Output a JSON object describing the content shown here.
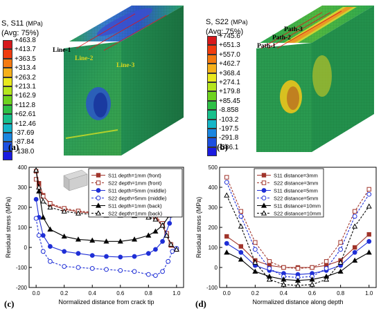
{
  "panel_a": {
    "label": "(a)",
    "legend_title_1": "S, S11",
    "legend_unit": "(MPa)",
    "legend_title_2": "(Avg: 75%)",
    "ticks": [
      "+463.8",
      "+413.7",
      "+363.5",
      "+313.4",
      "+263.2",
      "+213.1",
      "+162.9",
      "+112.8",
      "+62.61",
      "+12.46",
      "-37.69",
      "-87.84",
      "-138.0"
    ],
    "lines": [
      "Line-1",
      "Line-2",
      "Line-3"
    ]
  },
  "panel_b": {
    "label": "(b)",
    "legend_title_1": "S, S22",
    "legend_unit": "(MPa)",
    "legend_title_2": "(Avg: 75%)",
    "ticks": [
      "+745.6",
      "+651.3",
      "+557.0",
      "+462.7",
      "+368.4",
      "+274.1",
      "+179.8",
      "+85.45",
      "-8.858",
      "-103.2",
      "-197.5",
      "-291.8",
      "-386.1"
    ],
    "paths": [
      "Path-3",
      "Path-2",
      "Path-1"
    ]
  },
  "colorbar_colors": [
    "#d7191c",
    "#f03c0f",
    "#f47a10",
    "#f5b01a",
    "#e8e81e",
    "#b5e61d",
    "#6ed31e",
    "#2ec046",
    "#18c08c",
    "#15b6c8",
    "#1b86e0",
    "#1c4fe0",
    "#1b1be0"
  ],
  "panel_c_label": "(c)",
  "panel_d_label": "(d)",
  "chart_data": [
    {
      "type": "line",
      "xlabel": "Normalized distance from crack tip",
      "ylabel": "Residual stress (MPa)",
      "xlim": [
        -0.05,
        1.05
      ],
      "ylim": [
        -200,
        400
      ],
      "xticks": [
        "0.0",
        "0.2",
        "0.4",
        "0.6",
        "0.8",
        "1.0"
      ],
      "yticks": [
        "-200",
        "-100",
        "0",
        "100",
        "200",
        "300",
        "400"
      ],
      "legend": "top-right",
      "series": [
        {
          "name": "S11 depth=1mm (front)",
          "color": "#a0342a",
          "dash": false,
          "marker": "square-filled",
          "x": [
            0.0,
            0.02,
            0.05,
            0.1,
            0.2,
            0.3,
            0.4,
            0.5,
            0.6,
            0.7,
            0.8,
            0.85,
            0.9,
            0.93,
            0.96,
            1.0
          ],
          "y": [
            380,
            320,
            260,
            215,
            190,
            178,
            170,
            165,
            163,
            162,
            160,
            150,
            110,
            60,
            10,
            -10
          ]
        },
        {
          "name": "S22 depth=1mm (front)",
          "color": "#a0342a",
          "dash": true,
          "marker": "square-open",
          "x": [
            0.0,
            0.02,
            0.05,
            0.1,
            0.2,
            0.3,
            0.4,
            0.5,
            0.6,
            0.7,
            0.8,
            0.85,
            0.9,
            0.93,
            0.96,
            1.0
          ],
          "y": [
            340,
            300,
            255,
            220,
            195,
            182,
            175,
            170,
            167,
            165,
            162,
            155,
            120,
            70,
            15,
            -10
          ]
        },
        {
          "name": "S11 depth=5mm (middle)",
          "color": "#1f2fd6",
          "dash": false,
          "marker": "circle-filled",
          "x": [
            0.0,
            0.02,
            0.05,
            0.1,
            0.2,
            0.3,
            0.4,
            0.5,
            0.6,
            0.7,
            0.8,
            0.85,
            0.9,
            0.95,
            1.0
          ],
          "y": [
            240,
            150,
            60,
            5,
            -20,
            -30,
            -40,
            -45,
            -48,
            -45,
            -30,
            -10,
            30,
            120,
            285
          ]
        },
        {
          "name": "S22 depth=5mm (middle)",
          "color": "#1f2fd6",
          "dash": true,
          "marker": "circle-open",
          "x": [
            0.0,
            0.02,
            0.05,
            0.1,
            0.2,
            0.3,
            0.4,
            0.5,
            0.6,
            0.7,
            0.8,
            0.85,
            0.9,
            0.94,
            0.97,
            1.0
          ],
          "y": [
            145,
            60,
            -20,
            -70,
            -95,
            -100,
            -105,
            -110,
            -115,
            -120,
            -135,
            -140,
            -120,
            -70,
            -20,
            -5
          ]
        },
        {
          "name": "S11 depth=1mm (back)",
          "color": "#000000",
          "dash": false,
          "marker": "triangle-filled",
          "x": [
            0.0,
            0.02,
            0.05,
            0.1,
            0.2,
            0.3,
            0.4,
            0.5,
            0.6,
            0.7,
            0.8,
            0.85,
            0.9,
            0.95,
            1.0
          ],
          "y": [
            385,
            280,
            150,
            90,
            55,
            40,
            35,
            30,
            30,
            40,
            60,
            80,
            110,
            160,
            235
          ]
        },
        {
          "name": "S22 depth=1mm (back)",
          "color": "#000000",
          "dash": true,
          "marker": "triangle-open",
          "x": [
            0.0,
            0.02,
            0.05,
            0.1,
            0.2,
            0.3,
            0.4,
            0.5,
            0.6,
            0.7,
            0.8,
            0.85,
            0.9,
            0.93,
            0.96,
            1.0
          ],
          "y": [
            385,
            300,
            230,
            200,
            180,
            170,
            165,
            160,
            160,
            158,
            150,
            140,
            110,
            60,
            15,
            -10
          ]
        }
      ]
    },
    {
      "type": "line",
      "xlabel": "Normalized distance along depth",
      "ylabel": "Residual stress (MPa)",
      "xlim": [
        -0.05,
        1.05
      ],
      "ylim": [
        -100,
        500
      ],
      "xticks": [
        "0.0",
        "0.2",
        "0.4",
        "0.6",
        "0.8",
        "1.0"
      ],
      "yticks": [
        "-100",
        "0",
        "100",
        "200",
        "300",
        "400",
        "500"
      ],
      "legend": "top-center",
      "x": [
        0.0,
        0.1,
        0.2,
        0.3,
        0.4,
        0.5,
        0.6,
        0.7,
        0.8,
        0.9,
        1.0
      ],
      "series": [
        {
          "name": "S11 distance=3mm",
          "color": "#a0342a",
          "dash": false,
          "marker": "square-filled",
          "values": [
            155,
            105,
            35,
            10,
            0,
            0,
            0,
            10,
            35,
            100,
            165
          ]
        },
        {
          "name": "S22 distance=3mm",
          "color": "#a0342a",
          "dash": true,
          "marker": "square-open",
          "values": [
            450,
            280,
            125,
            30,
            0,
            -5,
            0,
            30,
            125,
            280,
            390
          ]
        },
        {
          "name": "S11 distance=5mm",
          "color": "#1f2fd6",
          "dash": false,
          "marker": "circle-filled",
          "values": [
            120,
            75,
            10,
            -15,
            -30,
            -35,
            -30,
            -15,
            10,
            75,
            130
          ]
        },
        {
          "name": "S22 distance=5mm",
          "color": "#1f2fd6",
          "dash": true,
          "marker": "circle-open",
          "values": [
            425,
            255,
            90,
            -5,
            -45,
            -50,
            -45,
            -5,
            90,
            255,
            365
          ]
        },
        {
          "name": "S11 distance=10mm",
          "color": "#000000",
          "dash": false,
          "marker": "triangle-filled",
          "values": [
            75,
            40,
            -20,
            -45,
            -60,
            -65,
            -60,
            -45,
            -20,
            35,
            75
          ]
        },
        {
          "name": "S22 distance=10mm",
          "color": "#000000",
          "dash": true,
          "marker": "triangle-open",
          "values": [
            360,
            205,
            25,
            -60,
            -85,
            -90,
            -85,
            -60,
            25,
            205,
            305
          ]
        }
      ]
    }
  ]
}
